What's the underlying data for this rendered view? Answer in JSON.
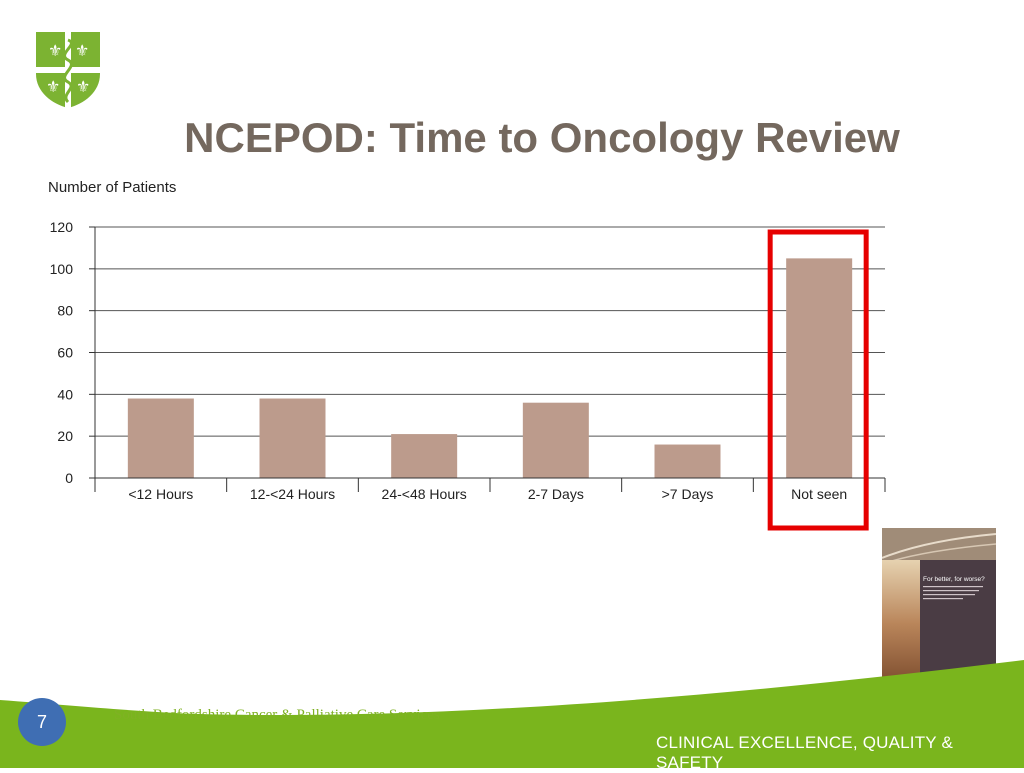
{
  "slide": {
    "title": "NCEPOD: Time to Oncology Review",
    "page_number": "7",
    "footer_org": "South Bedfordshire Cancer & Palliative Care Services",
    "footer_tagline": "CLINICAL EXCELLENCE, QUALITY & SAFETY"
  },
  "colors": {
    "bar": "#bc9b8c",
    "highlight": "#e60000",
    "title": "#74685e",
    "green": "#7ab51d",
    "logo_green": "#7cb332",
    "page_circle": "#3f6eb3"
  },
  "chart_data": {
    "type": "bar",
    "title": "",
    "ylabel": "Number of Patients",
    "xlabel": "",
    "categories": [
      "<12 Hours",
      "12-<24 Hours",
      "24-<48 Hours",
      "2-7 Days",
      ">7 Days",
      "Not seen"
    ],
    "values": [
      38,
      38,
      21,
      36,
      16,
      105
    ],
    "ylim": [
      0,
      120
    ],
    "yticks": [
      0,
      20,
      40,
      60,
      80,
      100,
      120
    ],
    "grid": true,
    "highlighted_category": "Not seen"
  },
  "report_thumbnail": {
    "title": "For better, for worse?",
    "subtitle": "A review of the care of patients who died within 30 days of receiving systemic anti-cancer therapy"
  }
}
